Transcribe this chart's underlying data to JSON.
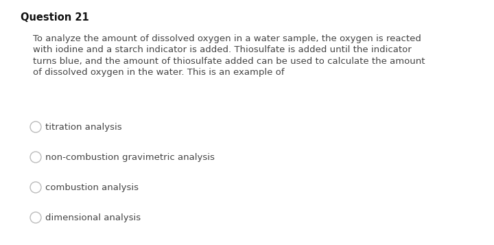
{
  "background_color": "#ffffff",
  "title": "Question 21",
  "title_fontsize": 10.5,
  "paragraph_lines": [
    "To analyze the amount of dissolved oxygen in a water sample, the oxygen is reacted",
    "with iodine and a starch indicator is added. Thiosulfate is added until the indicator",
    "turns blue, and the amount of thiosulfate added can be used to calculate the amount",
    "of dissolved oxygen in the water. This is an example of"
  ],
  "paragraph_fontsize": 9.5,
  "paragraph_color": "#444444",
  "options": [
    "titration analysis",
    "non-combustion gravimetric analysis",
    "combustion analysis",
    "dimensional analysis"
  ],
  "options_fontsize": 9.5,
  "options_color": "#444444",
  "circle_color": "#bbbbbb",
  "circle_linewidth": 1.0,
  "fig_width": 7.2,
  "fig_height": 3.57,
  "dpi": 100
}
